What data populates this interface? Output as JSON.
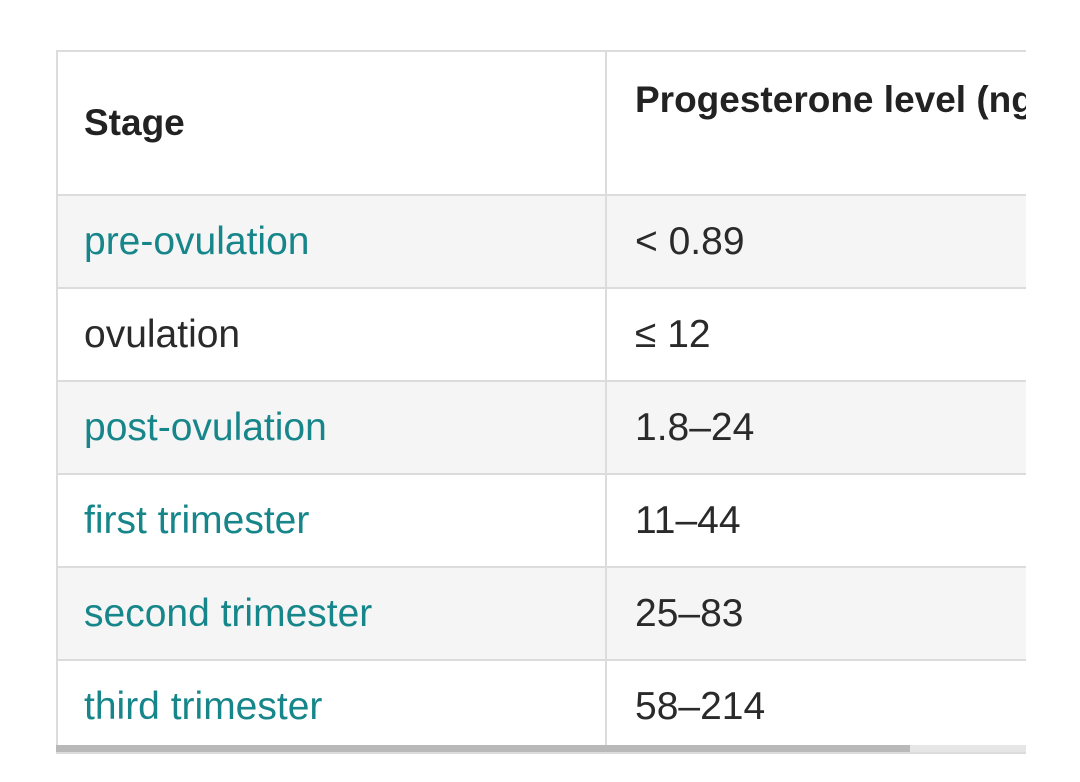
{
  "table": {
    "headers": [
      "Stage",
      "Progesterone level (ng/mL)"
    ],
    "rows": [
      {
        "stage": "pre-ovulation",
        "level": "< 0.89",
        "link": true
      },
      {
        "stage": "ovulation",
        "level": "≤ 12",
        "link": false
      },
      {
        "stage": "post-ovulation",
        "level": "1.8–24",
        "link": true
      },
      {
        "stage": "first trimester",
        "level": "11–44",
        "link": true
      },
      {
        "stage": "second trimester",
        "level": "25–83",
        "link": true
      },
      {
        "stage": "third trimester",
        "level": "58–214",
        "link": true
      }
    ]
  },
  "colors": {
    "link": "#17868a",
    "text": "#2a2a2a",
    "alt_row": "#f5f5f5",
    "border": "#dcdcdc"
  },
  "scrollbar": {
    "horizontal_position": 0.88
  }
}
